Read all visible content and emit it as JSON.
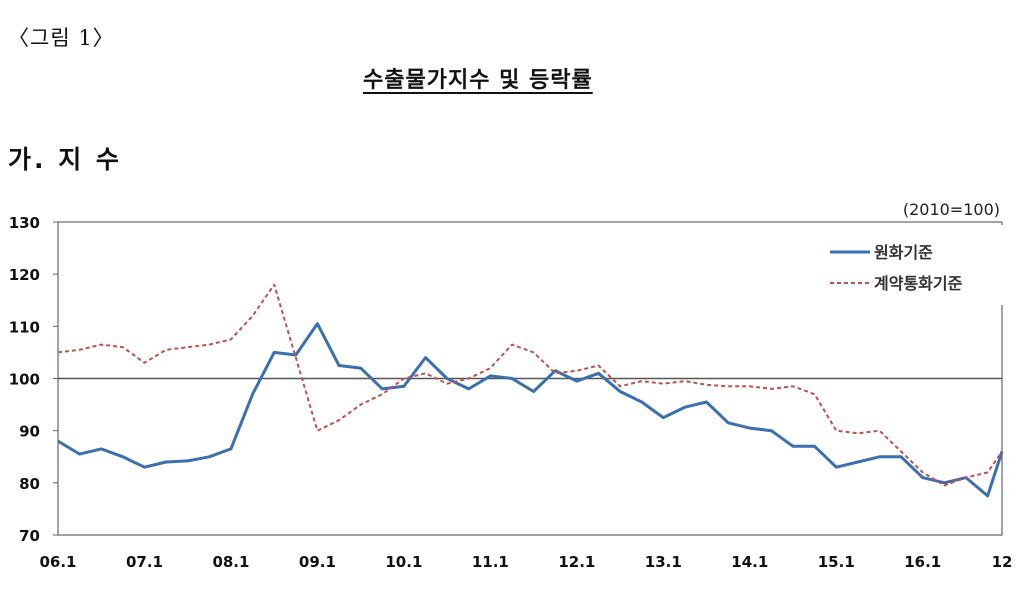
{
  "document": {
    "figure_label": "〈그림 1〉",
    "title": "수출물가지수 및 등락률",
    "section_title": "가. 지 수"
  },
  "chart_data": {
    "type": "line",
    "title": "수출물가지수",
    "unit_note": "(2010=100)",
    "xlabel": "",
    "ylabel": "",
    "ylim": [
      70,
      130
    ],
    "yticks": [
      70,
      80,
      90,
      100,
      110,
      120,
      130
    ],
    "reference_line": 100,
    "grid": false,
    "legend_position": "top-right",
    "x_tick_labels": [
      "06.1",
      "07.1",
      "08.1",
      "09.1",
      "10.1",
      "11.1",
      "12.1",
      "13.1",
      "14.1",
      "15.1",
      "16.1",
      "12"
    ],
    "x_months": [
      "06.1",
      "06.4",
      "06.7",
      "06.10",
      "07.1",
      "07.4",
      "07.7",
      "07.10",
      "08.1",
      "08.4",
      "08.7",
      "08.10",
      "09.1",
      "09.4",
      "09.7",
      "09.10",
      "10.1",
      "10.4",
      "10.7",
      "10.10",
      "11.1",
      "11.4",
      "11.7",
      "11.10",
      "12.1",
      "12.4",
      "12.7",
      "12.10",
      "13.1",
      "13.4",
      "13.7",
      "13.10",
      "14.1",
      "14.4",
      "14.7",
      "14.10",
      "15.1",
      "15.4",
      "15.7",
      "15.10",
      "16.1",
      "16.4",
      "16.7",
      "16.10",
      "16.12"
    ],
    "series": [
      {
        "name": "원화기준",
        "color": "#3A6FB0",
        "style": "solid",
        "values": [
          88.0,
          85.5,
          86.5,
          85.0,
          83.0,
          84.0,
          84.2,
          85.0,
          86.5,
          97.0,
          105.0,
          104.5,
          110.5,
          102.5,
          102.0,
          98.0,
          98.5,
          104.0,
          100.0,
          98.0,
          100.5,
          100.0,
          97.5,
          101.5,
          99.5,
          101.0,
          97.5,
          95.5,
          92.5,
          94.5,
          95.5,
          91.5,
          90.5,
          90.0,
          87.0,
          87.0,
          83.0,
          84.0,
          85.0,
          85.0,
          81.0,
          80.0,
          81.0,
          77.5,
          86.0
        ]
      },
      {
        "name": "계약통화기준",
        "color": "#C0504D",
        "style": "dashed",
        "values": [
          105.0,
          105.5,
          106.5,
          106.0,
          103.0,
          105.5,
          106.0,
          106.5,
          107.5,
          112.0,
          118.0,
          104.0,
          90.0,
          92.0,
          95.0,
          97.0,
          100.0,
          101.0,
          99.0,
          100.0,
          102.0,
          106.5,
          105.0,
          101.0,
          101.5,
          102.5,
          98.5,
          99.5,
          99.0,
          99.5,
          98.8,
          98.5,
          98.5,
          98.0,
          98.5,
          97.0,
          90.0,
          89.5,
          90.0,
          86.0,
          82.0,
          79.5,
          81.0,
          82.0,
          86.0
        ]
      }
    ]
  }
}
